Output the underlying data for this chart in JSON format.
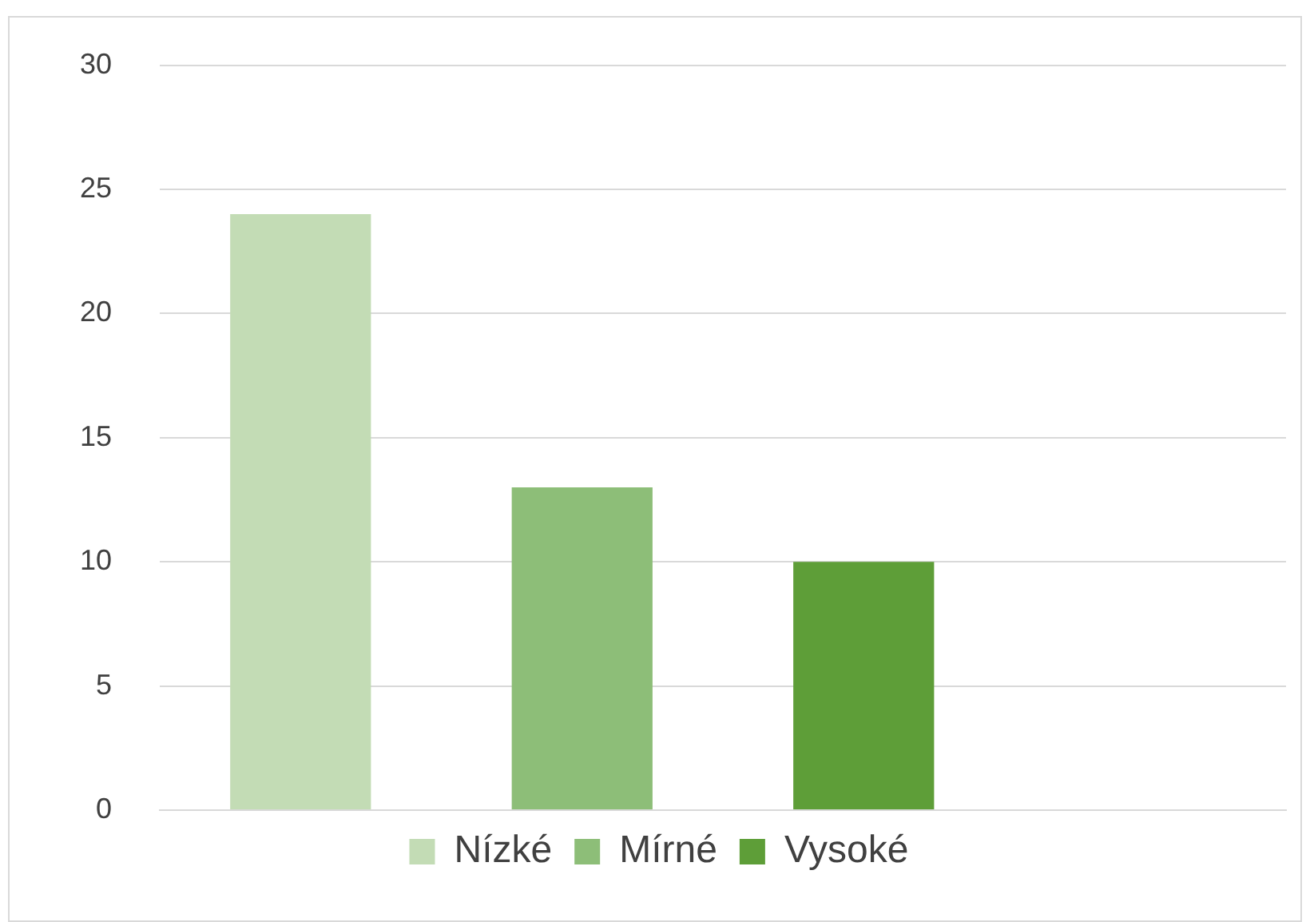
{
  "chart_data": {
    "type": "bar",
    "categories": [
      null,
      null,
      null,
      null
    ],
    "series": [
      {
        "name": "Nízké",
        "color": "#c3dcb5",
        "values": [
          24,
          null,
          null,
          null
        ]
      },
      {
        "name": "Mírné",
        "color": "#8dbe78",
        "values": [
          null,
          13,
          null,
          null
        ]
      },
      {
        "name": "Vysoké",
        "color": "#5e9e38",
        "values": [
          null,
          null,
          10,
          null
        ]
      }
    ],
    "ylim": [
      0,
      30
    ],
    "yticks": [
      0,
      5,
      10,
      15,
      20,
      25,
      30
    ],
    "grid": "y",
    "legend": "bottom",
    "tick_labels": "y"
  }
}
